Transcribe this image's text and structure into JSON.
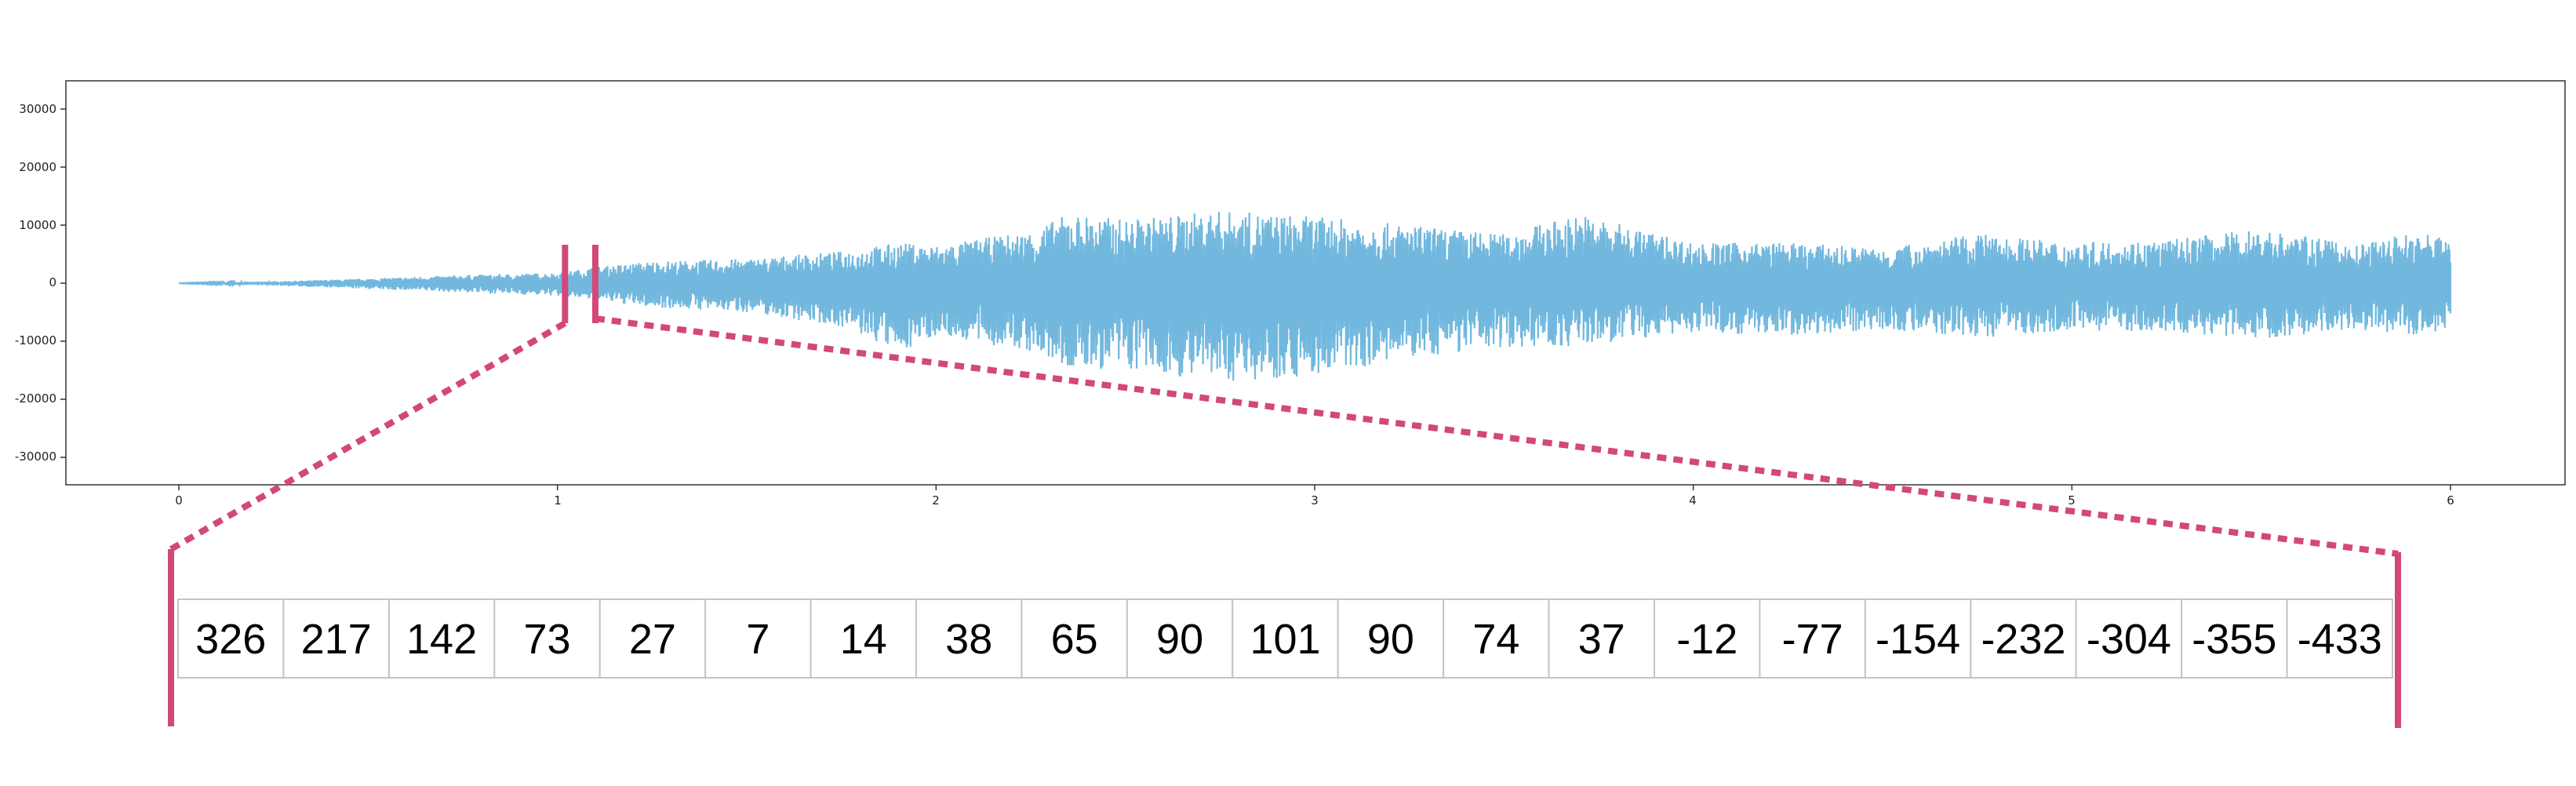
{
  "chart_data": {
    "type": "line",
    "title": "",
    "xlabel": "",
    "ylabel": "",
    "xlim": [
      -0.3,
      6.3
    ],
    "ylim": [
      -35000,
      35000
    ],
    "x_ticks": [
      "0",
      "1",
      "2",
      "3",
      "4",
      "5",
      "6"
    ],
    "y_ticks": [
      "30000",
      "20000",
      "10000",
      "0",
      "-10000",
      "-20000",
      "-30000"
    ],
    "grid": false,
    "waveform_color": "#72b8de",
    "highlight_color": "#d2487a",
    "series": [
      {
        "x": [
          0,
          0.25,
          0.5,
          0.75,
          1.0,
          1.1,
          1.25,
          1.5,
          1.75,
          1.9,
          2.0,
          2.25,
          2.35,
          2.5,
          2.75,
          3.0,
          3.25,
          3.5,
          3.7,
          4.0,
          4.25,
          4.5,
          4.75,
          5.0,
          5.25,
          5.5,
          5.75,
          5.9,
          6.0
        ],
        "y_max": [
          0,
          300,
          800,
          1400,
          1800,
          2800,
          3800,
          4200,
          5500,
          7000,
          6500,
          9000,
          12000,
          11000,
          12500,
          11500,
          10000,
          8500,
          12000,
          7000,
          7000,
          6000,
          8500,
          7000,
          7500,
          9500,
          6500,
          9000,
          8000
        ],
        "y_min": [
          0,
          -400,
          -1000,
          -1600,
          -2200,
          -3000,
          -4200,
          -5000,
          -7500,
          -12000,
          -9000,
          -12000,
          -15000,
          -15000,
          -17000,
          -16000,
          -13000,
          -11000,
          -11000,
          -8500,
          -9000,
          -8000,
          -9500,
          -8000,
          -8500,
          -9500,
          -8000,
          -9000,
          -8500
        ]
      }
    ],
    "zoom_region": {
      "x_start": 1.02,
      "x_end": 1.1
    },
    "zoom_samples": [
      326,
      217,
      142,
      73,
      27,
      7,
      14,
      38,
      65,
      90,
      101,
      90,
      74,
      37,
      -12,
      -77,
      -154,
      -232,
      -304,
      -355,
      -433
    ]
  }
}
